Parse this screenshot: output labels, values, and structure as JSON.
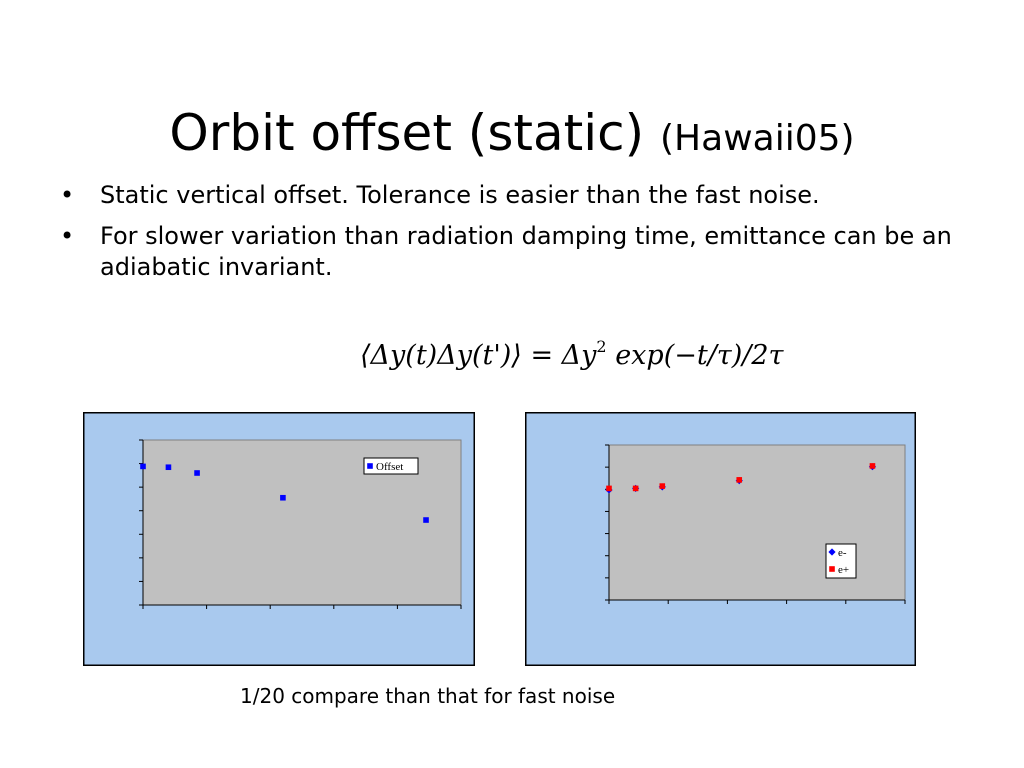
{
  "slide": {
    "title": "Orbit offset (static)",
    "title_suffix": "(Hawaii05)",
    "bullets": [
      "Static vertical offset. Tolerance is easier than the fast noise.",
      "For slower variation than radiation damping time, emittance can be an adiabatic invariant."
    ],
    "bullet_glyph": "•",
    "formula": {
      "text": "⟨Δy(t)Δy(t')⟩ = Δy² exp(−t/τ)/2τ",
      "lhs": "⟨Δy(t)Δy(t')⟩",
      "equals": "=",
      "dy": "Δy",
      "power": "2",
      "rest": "exp(−t/τ)/2τ"
    },
    "caption": "1/20 compare than that for fast noise",
    "colors": {
      "panel_bg": "#a9c9ee",
      "plot_bg": "#c0c0c0",
      "series_blue": "#0000ff",
      "series_red": "#ff0000"
    }
  },
  "chart_data": [
    {
      "type": "scatter",
      "title": "",
      "xlabel": "",
      "ylabel": "",
      "grid": false,
      "legend": "top-right",
      "xlim": [
        0,
        1
      ],
      "ylim": [
        0,
        1
      ],
      "series": [
        {
          "name": "Offset",
          "marker": "square",
          "color": "#0000ff",
          "x": [
            0.0,
            0.08,
            0.17,
            0.44,
            0.89
          ],
          "y": [
            0.84,
            0.835,
            0.8,
            0.65,
            0.515
          ]
        }
      ]
    },
    {
      "type": "scatter",
      "title": "",
      "xlabel": "",
      "ylabel": "",
      "grid": false,
      "legend": "bottom-right",
      "xlim": [
        0,
        1
      ],
      "ylim": [
        0,
        1
      ],
      "series": [
        {
          "name": "e-",
          "marker": "diamond",
          "color": "#0000ff",
          "x": [
            0.0,
            0.09,
            0.18,
            0.44,
            0.89
          ],
          "y": [
            0.71,
            0.72,
            0.73,
            0.77,
            0.86
          ]
        },
        {
          "name": "e+",
          "marker": "square",
          "color": "#ff0000",
          "x": [
            0.0,
            0.09,
            0.18,
            0.44,
            0.89
          ],
          "y": [
            0.72,
            0.72,
            0.735,
            0.775,
            0.865
          ]
        }
      ]
    }
  ]
}
